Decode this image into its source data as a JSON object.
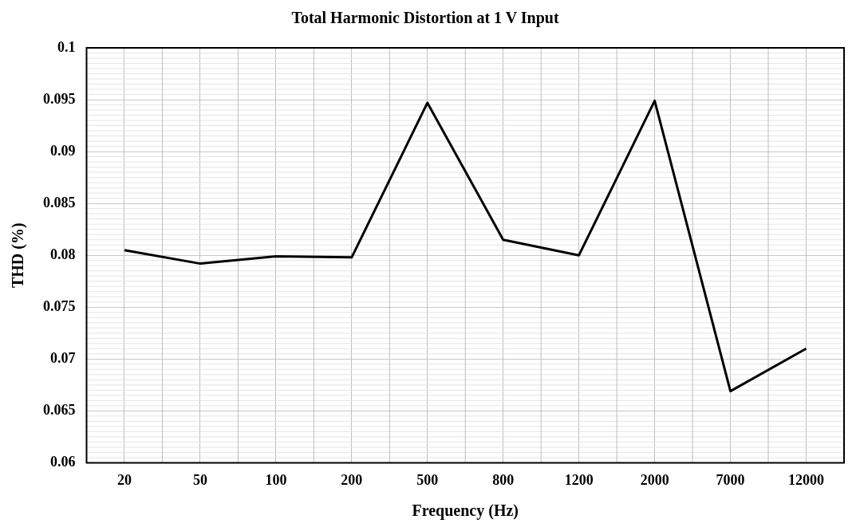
{
  "chart_data": {
    "type": "line",
    "title": "Total Harmonic Distortion at 1 V Input",
    "xlabel": "Frequency (Hz)",
    "ylabel": "THD (%)",
    "categories": [
      "20",
      "50",
      "100",
      "200",
      "500",
      "800",
      "1200",
      "2000",
      "7000",
      "12000"
    ],
    "series": [
      {
        "color": "#000000",
        "values": [
          0.0805,
          0.0792,
          0.0799,
          0.0798,
          0.0947,
          0.0815,
          0.08,
          0.0949,
          0.0669,
          0.071
        ]
      }
    ],
    "ylim": [
      0.06,
      0.1
    ],
    "yticks": [
      0.06,
      0.065,
      0.07,
      0.075,
      0.08,
      0.085,
      0.09,
      0.095,
      0.1
    ],
    "grid": true,
    "legend": false,
    "marker": "none",
    "line_style": "solid"
  }
}
